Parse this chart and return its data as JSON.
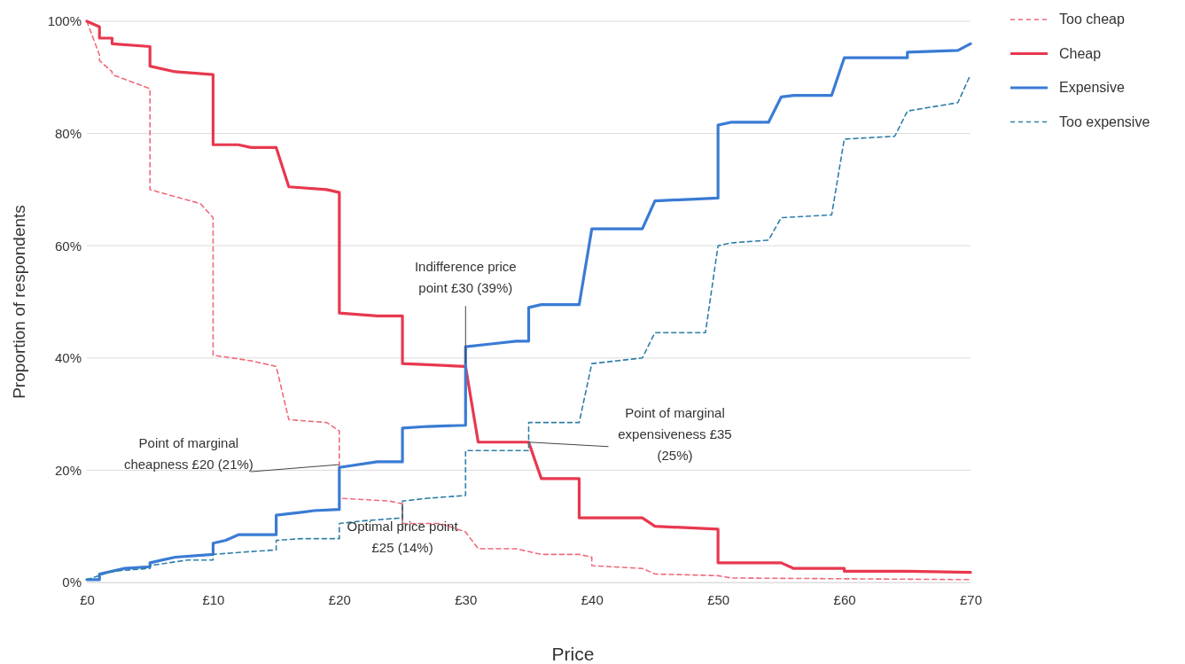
{
  "chart_data": {
    "type": "line",
    "xlabel": "Price",
    "ylabel": "Proportion of respondents",
    "xlim": [
      0,
      70
    ],
    "ylim": [
      0,
      100
    ],
    "xticks": [
      {
        "value": 0,
        "label": "£0"
      },
      {
        "value": 10,
        "label": "£10"
      },
      {
        "value": 20,
        "label": "£20"
      },
      {
        "value": 30,
        "label": "£30"
      },
      {
        "value": 40,
        "label": "£40"
      },
      {
        "value": 50,
        "label": "£50"
      },
      {
        "value": 60,
        "label": "£60"
      },
      {
        "value": 70,
        "label": "£70"
      }
    ],
    "yticks": [
      {
        "value": 0,
        "label": "0%"
      },
      {
        "value": 20,
        "label": "20%"
      },
      {
        "value": 40,
        "label": "40%"
      },
      {
        "value": 60,
        "label": "60%"
      },
      {
        "value": 80,
        "label": "80%"
      },
      {
        "value": 100,
        "label": "100%"
      }
    ],
    "grid": "y",
    "legend": "right",
    "marker": "none",
    "series": [
      {
        "name": "Too cheap",
        "color": "#f06a7a",
        "line_style": "dashed",
        "x": [
          0,
          1,
          1,
          2,
          2,
          5,
          5,
          9,
          10,
          10,
          13,
          15,
          16,
          19,
          20,
          20,
          24,
          25,
          25,
          28,
          30,
          31,
          34,
          36,
          39,
          40,
          40,
          44,
          45,
          50,
          51,
          70
        ],
        "values": [
          100,
          94,
          93,
          91,
          90.5,
          88,
          70,
          67.5,
          65,
          40.5,
          39.5,
          38.5,
          29,
          28.5,
          27,
          15,
          14.5,
          14,
          10.5,
          10.5,
          9,
          6,
          6,
          5,
          5,
          4.5,
          3,
          2.5,
          1.5,
          1.2,
          0.8,
          0.5
        ]
      },
      {
        "name": "Cheap",
        "color": "#e8384f",
        "line_style": "solid",
        "x": [
          0,
          1,
          1,
          2,
          2,
          5,
          5,
          7,
          10,
          10,
          12,
          13,
          15,
          16,
          19,
          20,
          20,
          23,
          25,
          25,
          27,
          30,
          31,
          35,
          36,
          39,
          39,
          44,
          45,
          50,
          50,
          55,
          56,
          60,
          60,
          65,
          70
        ],
        "values": [
          100,
          99,
          97,
          97,
          96,
          95.5,
          92,
          91,
          90.5,
          78,
          78,
          77.5,
          77.5,
          70.5,
          70,
          69.5,
          48,
          47.5,
          47.5,
          39,
          38.8,
          38.5,
          25,
          25,
          18.5,
          18.5,
          11.5,
          11.5,
          10,
          9.5,
          3.5,
          3.5,
          2.5,
          2.5,
          2,
          2,
          1.8
        ]
      },
      {
        "name": "Expensive",
        "color": "#3a7bd5",
        "line_style": "solid",
        "x": [
          0,
          1,
          1,
          2,
          3,
          5,
          5,
          6,
          7,
          10,
          10,
          11,
          12,
          15,
          15,
          17,
          18,
          20,
          20,
          23,
          25,
          25,
          27,
          30,
          30,
          32,
          34,
          35,
          35,
          36,
          39,
          40,
          44,
          45,
          50,
          50,
          51,
          54,
          55,
          56,
          59,
          60,
          65,
          65,
          69,
          70
        ],
        "values": [
          0.5,
          0.5,
          1.5,
          2,
          2.5,
          2.8,
          3.5,
          4,
          4.5,
          5,
          7,
          7.5,
          8.5,
          8.5,
          12,
          12.5,
          12.8,
          13,
          20.5,
          21.5,
          21.5,
          27.5,
          27.8,
          28,
          42,
          42.5,
          43,
          43,
          49,
          49.5,
          49.5,
          63,
          63,
          68,
          68.5,
          81.5,
          82,
          82,
          86.5,
          86.8,
          86.8,
          93.5,
          93.5,
          94.5,
          94.8,
          96
        ]
      },
      {
        "name": "Too expensive",
        "color": "#2f7fa8",
        "line_style": "dashed",
        "x": [
          0,
          2,
          5,
          5,
          8,
          10,
          10,
          13,
          15,
          15,
          17,
          20,
          20,
          22,
          25,
          25,
          27,
          30,
          30,
          35,
          35,
          39,
          40,
          42,
          44,
          45,
          49,
          50,
          51,
          54,
          55,
          59,
          60,
          64,
          65,
          69,
          70
        ],
        "values": [
          0.5,
          2,
          2.5,
          3,
          4,
          4,
          5,
          5.5,
          5.8,
          7.5,
          7.8,
          7.8,
          10.5,
          11,
          11.5,
          14.5,
          15,
          15.5,
          23.5,
          23.5,
          28.5,
          28.5,
          39,
          39.5,
          40,
          44.5,
          44.5,
          60,
          60.5,
          61,
          65,
          65.5,
          79,
          79.5,
          84,
          85.5,
          90.5
        ]
      }
    ],
    "annotations": [
      {
        "text": "Point of marginal\ncheapness £20 (21%)",
        "x": 20,
        "y": 21
      },
      {
        "text": "Indifference price\npoint £30 (39%)",
        "x": 30,
        "y": 39
      },
      {
        "text": "Point of marginal\nexpensiveness £35\n(25%)",
        "x": 35,
        "y": 25
      },
      {
        "text": "Optimal price point\n£25 (14%)",
        "x": 25,
        "y": 14
      }
    ]
  }
}
